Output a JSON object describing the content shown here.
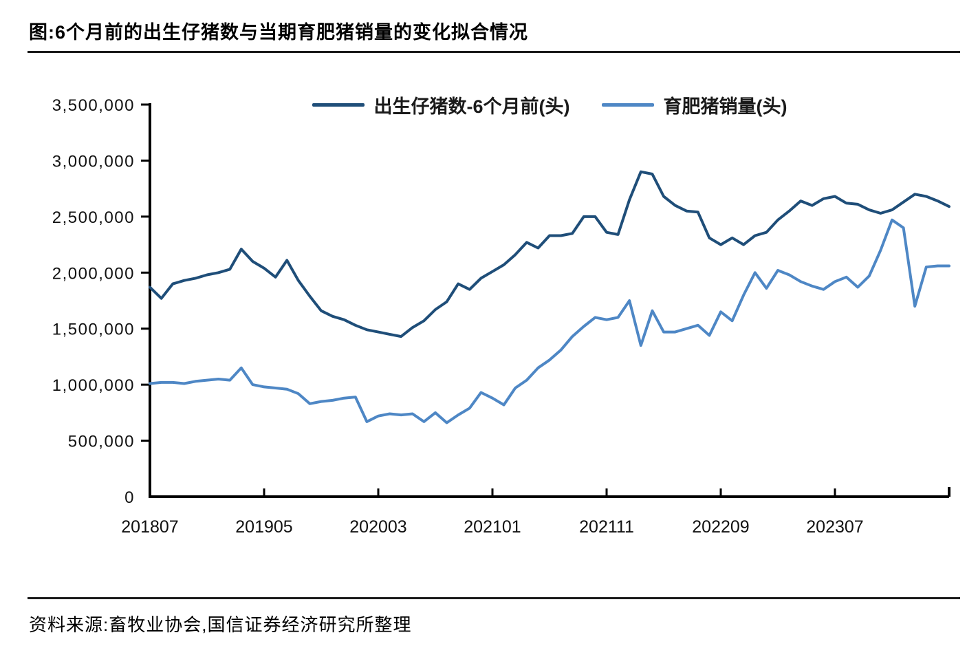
{
  "header": {
    "title": "图:6个月前的出生仔猪数与当期育肥猪销量的变化拟合情况"
  },
  "footer": {
    "source": "资料来源:畜牧业协会,国信证券经济研究所整理"
  },
  "colors": {
    "series_dark_blue": "#1F4E79",
    "series_light_blue": "#4E87C5",
    "axis": "#000000",
    "text": "#111111"
  },
  "chart_data": {
    "type": "line",
    "title": "6个月前的出生仔猪数与当期育肥猪销量的变化拟合情况",
    "xlabel": "",
    "ylabel": "",
    "x_unit": "month",
    "x_start": "2018-07",
    "x_end": "2024-05",
    "grid": false,
    "legend_position": "top-center",
    "ylim": [
      0,
      3500000
    ],
    "y_ticks": [
      0,
      500000,
      1000000,
      1500000,
      2000000,
      2500000,
      3000000,
      3500000
    ],
    "y_tick_labels": [
      "0",
      "500,000",
      "1,000,000",
      "1,500,000",
      "2,000,000",
      "2,500,000",
      "3,000,000",
      "3,500,000"
    ],
    "x_tick_labels": [
      "201807",
      "201905",
      "202003",
      "202101",
      "202111",
      "202209",
      "202307"
    ],
    "x_tick_month_indices": [
      0,
      10,
      20,
      30,
      40,
      50,
      60
    ],
    "series": [
      {
        "name": "出生仔猪数-6个月前(头)",
        "color": "#1F4E79",
        "values": [
          1870000,
          1770000,
          1900000,
          1930000,
          1950000,
          1980000,
          2000000,
          2030000,
          2210000,
          2100000,
          2040000,
          1960000,
          2110000,
          1930000,
          1790000,
          1660000,
          1610000,
          1580000,
          1530000,
          1490000,
          1470000,
          1450000,
          1430000,
          1510000,
          1570000,
          1670000,
          1740000,
          1900000,
          1850000,
          1950000,
          2010000,
          2070000,
          2160000,
          2270000,
          2220000,
          2330000,
          2330000,
          2350000,
          2500000,
          2500000,
          2360000,
          2340000,
          2650000,
          2900000,
          2880000,
          2680000,
          2600000,
          2550000,
          2540000,
          2310000,
          2250000,
          2310000,
          2250000,
          2330000,
          2360000,
          2470000,
          2550000,
          2640000,
          2600000,
          2660000,
          2680000,
          2620000,
          2610000,
          2560000,
          2530000,
          2560000,
          2630000,
          2700000,
          2680000,
          2640000,
          2590000
        ]
      },
      {
        "name": "育肥猪销量(头)",
        "color": "#4E87C5",
        "values": [
          1010000,
          1020000,
          1020000,
          1010000,
          1030000,
          1040000,
          1050000,
          1040000,
          1150000,
          1000000,
          980000,
          970000,
          960000,
          920000,
          830000,
          850000,
          860000,
          880000,
          890000,
          670000,
          720000,
          740000,
          730000,
          740000,
          670000,
          750000,
          660000,
          730000,
          790000,
          930000,
          880000,
          820000,
          970000,
          1040000,
          1150000,
          1220000,
          1310000,
          1430000,
          1520000,
          1600000,
          1580000,
          1600000,
          1750000,
          1350000,
          1660000,
          1470000,
          1470000,
          1500000,
          1530000,
          1440000,
          1650000,
          1570000,
          1800000,
          2000000,
          1860000,
          2020000,
          1980000,
          1920000,
          1880000,
          1850000,
          1920000,
          1960000,
          1870000,
          1970000,
          2200000,
          2470000,
          2400000,
          1700000,
          2050000,
          2060000,
          2060000
        ]
      }
    ]
  }
}
